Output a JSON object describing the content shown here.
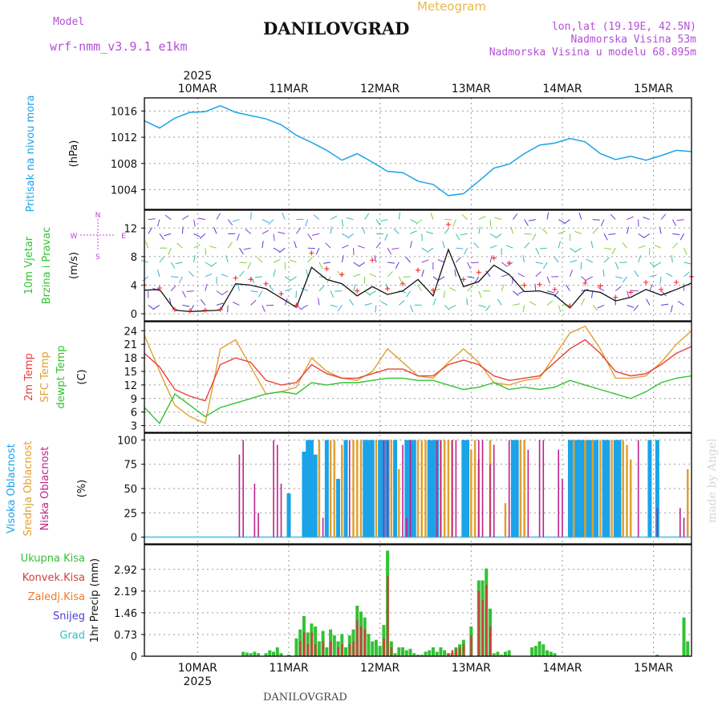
{
  "header": {
    "meteogram_label": "Meteogram",
    "model_label": "Model",
    "model_name": "wrf-nmm_v3.9.1  e1km",
    "station": "DANILOVGRAD",
    "lonlat": "lon,lat (19.19E, 42.5N)",
    "elevation": "Nadmorska Visina 53m",
    "model_elevation": "Nadmorska Visina u modelu 68.895m",
    "watermark": "made by Angel",
    "footer_station": "DANILOVGRAD"
  },
  "colors": {
    "pressure": "#1aa3e8",
    "temp2m": "#e8413c",
    "sfc_temp": "#e0a030",
    "dewpt": "#33c233",
    "wind_speed": "#111111",
    "gust": "#ff3333",
    "high_cloud": "#1aa3e8",
    "mid_cloud": "#e0a030",
    "low_cloud": "#c0208a",
    "total_precip": "#33c233",
    "conv_precip": "#d04040",
    "axis_label_pink": "#c040e0"
  },
  "time_axis": {
    "year": "2025",
    "days": [
      "10MAR",
      "11MAR",
      "12MAR",
      "13MAR",
      "14MAR",
      "15MAR"
    ],
    "hours_total": 144
  },
  "chart_data": [
    {
      "type": "line",
      "panel": "pressure",
      "ylabel_main": "Pritisak na nivou mora",
      "unit": "(hPa)",
      "yticks": [
        1004,
        1008,
        1012,
        1016
      ],
      "ylim": [
        1001,
        1018
      ],
      "grid": true,
      "series": [
        {
          "name": "Pritisak na nivou mora",
          "x": [
            0,
            4,
            8,
            12,
            16,
            20,
            24,
            28,
            32,
            36,
            40,
            44,
            48,
            52,
            56,
            60,
            64,
            68,
            72,
            76,
            80,
            84,
            88,
            92,
            96,
            100,
            104,
            108,
            112,
            116,
            120,
            124,
            128,
            132,
            136,
            140,
            144
          ],
          "values": [
            1014.5,
            1013.4,
            1014.9,
            1015.8,
            1015.9,
            1016.8,
            1015.8,
            1015.3,
            1014.8,
            1013.9,
            1012.3,
            1011.2,
            1010.0,
            1008.5,
            1009.5,
            1008.2,
            1006.8,
            1006.6,
            1005.3,
            1004.8,
            1003.1,
            1003.4,
            1005.3,
            1007.3,
            1007.9,
            1009.5,
            1010.8,
            1011.1,
            1011.8,
            1011.3,
            1009.5,
            1008.6,
            1009.1,
            1008.5,
            1009.2,
            1010.0,
            1009.8
          ]
        }
      ]
    },
    {
      "type": "line",
      "panel": "wind",
      "ylabel_main": "10m Vjetar",
      "ylabel_sub": "Brzina i Pravac",
      "unit": "(m/s)",
      "compass": [
        "N",
        "W",
        "E",
        "S"
      ],
      "yticks": [
        0,
        4,
        8,
        12
      ],
      "ylim": [
        -1,
        14.5
      ],
      "grid": true,
      "series": [
        {
          "name": "10m Vjetar",
          "x": [
            0,
            4,
            8,
            12,
            16,
            20,
            24,
            28,
            32,
            36,
            40,
            44,
            48,
            52,
            56,
            60,
            64,
            68,
            72,
            76,
            80,
            84,
            88,
            92,
            96,
            100,
            104,
            108,
            112,
            116,
            120,
            124,
            128,
            132,
            136,
            140,
            144
          ],
          "values": [
            3.3,
            3.4,
            0.5,
            0.3,
            0.4,
            0.5,
            4.2,
            4.0,
            3.5,
            2.2,
            0.9,
            6.5,
            4.8,
            4.2,
            2.5,
            3.8,
            2.7,
            3.2,
            4.8,
            2.5,
            9.0,
            3.8,
            4.5,
            6.8,
            5.5,
            3.1,
            3.2,
            2.6,
            0.8,
            3.3,
            3.0,
            1.8,
            2.3,
            3.4,
            2.6,
            3.4,
            4.3
          ]
        },
        {
          "name": "gust",
          "x": [
            0,
            4,
            8,
            12,
            16,
            20,
            24,
            28,
            32,
            36,
            40,
            44,
            48,
            52,
            56,
            60,
            64,
            68,
            72,
            76,
            80,
            84,
            88,
            92,
            96,
            100,
            104,
            108,
            112,
            116,
            120,
            124,
            128,
            132,
            136,
            140,
            144
          ],
          "values": [
            4.0,
            3.6,
            0.6,
            0.4,
            0.5,
            0.6,
            5.0,
            4.8,
            4.2,
            2.8,
            1.2,
            8.5,
            6.3,
            5.5,
            3.2,
            7.5,
            3.5,
            4.2,
            6.1,
            3.3,
            12.5,
            4.8,
            5.8,
            7.8,
            7.1,
            4.0,
            4.1,
            3.4,
            1.1,
            4.3,
            3.9,
            2.3,
            3.0,
            4.4,
            3.4,
            4.4,
            5.2
          ]
        }
      ]
    },
    {
      "type": "line",
      "panel": "temperature",
      "ylabel_lines": [
        "2m Temp",
        "SFC Temp",
        "dewpt Temp"
      ],
      "unit": "(C)",
      "yticks": [
        3,
        6,
        9,
        12,
        15,
        18,
        21,
        24
      ],
      "ylim": [
        1.5,
        26
      ],
      "grid": true,
      "series": [
        {
          "name": "2m Temp",
          "x": [
            0,
            4,
            8,
            12,
            16,
            20,
            24,
            28,
            32,
            36,
            40,
            44,
            48,
            52,
            56,
            60,
            64,
            68,
            72,
            76,
            80,
            84,
            88,
            92,
            96,
            100,
            104,
            108,
            112,
            116,
            120,
            124,
            128,
            132,
            136,
            140,
            144
          ],
          "values": [
            19.0,
            16.0,
            11.0,
            9.5,
            8.5,
            16.5,
            18.0,
            17.0,
            13.0,
            12.0,
            12.5,
            16.5,
            14.5,
            13.5,
            13.5,
            14.5,
            15.5,
            15.5,
            14.0,
            14.0,
            16.5,
            17.5,
            16.5,
            14.0,
            13.0,
            13.5,
            14.0,
            17.0,
            20.0,
            22.0,
            19.0,
            15.0,
            14.0,
            14.5,
            16.5,
            19.0,
            20.5
          ]
        },
        {
          "name": "SFC Temp",
          "x": [
            0,
            4,
            8,
            12,
            16,
            20,
            24,
            28,
            32,
            36,
            40,
            44,
            48,
            52,
            56,
            60,
            64,
            68,
            72,
            76,
            80,
            84,
            88,
            92,
            96,
            100,
            104,
            108,
            112,
            116,
            120,
            124,
            128,
            132,
            136,
            140,
            144
          ],
          "values": [
            23.0,
            15.0,
            7.5,
            5.0,
            3.5,
            20.0,
            22.0,
            16.0,
            10.0,
            10.5,
            11.5,
            18.0,
            15.0,
            13.5,
            13.0,
            15.0,
            20.0,
            17.0,
            14.0,
            13.5,
            17.0,
            20.0,
            17.0,
            12.5,
            12.0,
            13.0,
            13.5,
            18.5,
            23.5,
            25.0,
            20.0,
            13.5,
            13.5,
            14.0,
            17.0,
            21.0,
            24.0
          ]
        },
        {
          "name": "dewpt Temp",
          "x": [
            0,
            4,
            8,
            12,
            16,
            20,
            24,
            28,
            32,
            36,
            40,
            44,
            48,
            52,
            56,
            60,
            64,
            68,
            72,
            76,
            80,
            84,
            88,
            92,
            96,
            100,
            104,
            108,
            112,
            116,
            120,
            124,
            128,
            132,
            136,
            140,
            144
          ],
          "values": [
            7.0,
            3.5,
            10.0,
            7.5,
            5.0,
            7.0,
            8.0,
            9.0,
            10.0,
            10.5,
            10.0,
            12.5,
            12.0,
            12.5,
            12.5,
            13.0,
            13.5,
            13.5,
            13.0,
            13.0,
            12.0,
            11.0,
            11.5,
            12.5,
            11.0,
            11.5,
            11.0,
            11.5,
            13.0,
            12.0,
            11.0,
            10.0,
            9.0,
            10.5,
            12.5,
            13.5,
            14.0
          ]
        }
      ]
    },
    {
      "type": "bar",
      "panel": "cloud",
      "ylabel_lines": [
        "Visoka Oblacnost",
        "Srednja Oblacnost",
        "Niska Oblacnost"
      ],
      "unit": "(%)",
      "yticks": [
        0,
        25,
        50,
        75,
        100
      ],
      "ylim": [
        -7,
        107
      ],
      "grid": true,
      "series": [
        {
          "name": "Visoka Oblacnost",
          "x": [
            38,
            42,
            43,
            44,
            45,
            48,
            51,
            53,
            58,
            59,
            60,
            62,
            63,
            64,
            66,
            69,
            70,
            71,
            75,
            76,
            77,
            84,
            85,
            97,
            98,
            112,
            113,
            114,
            115,
            116,
            117,
            118,
            119,
            121,
            122,
            124,
            125,
            133,
            135
          ],
          "values": [
            45,
            88,
            100,
            100,
            85,
            100,
            60,
            100,
            100,
            100,
            100,
            100,
            100,
            100,
            100,
            100,
            100,
            100,
            100,
            100,
            100,
            100,
            100,
            100,
            100,
            100,
            100,
            100,
            100,
            100,
            100,
            100,
            100,
            100,
            100,
            100,
            100,
            100,
            100
          ]
        },
        {
          "name": "Srednja Oblacnost",
          "x": [
            46,
            49,
            50,
            52,
            55,
            56,
            57,
            61,
            65,
            67,
            72,
            73,
            74,
            78,
            79,
            80,
            81,
            86,
            87,
            88,
            91,
            95,
            99,
            100,
            113,
            116,
            118,
            120,
            123,
            126,
            127,
            128,
            143
          ],
          "values": [
            100,
            100,
            100,
            95,
            100,
            100,
            100,
            100,
            100,
            70,
            100,
            100,
            100,
            100,
            100,
            100,
            100,
            90,
            100,
            80,
            100,
            35,
            100,
            100,
            100,
            100,
            100,
            100,
            100,
            100,
            95,
            80,
            70
          ]
        },
        {
          "name": "Niska Oblacnost",
          "x": [
            25,
            26,
            29,
            30,
            34,
            35,
            36,
            47,
            54,
            63,
            64,
            68,
            69,
            70,
            77,
            78,
            81,
            82,
            88,
            89,
            91,
            92,
            96,
            101,
            104,
            105,
            109,
            110,
            130,
            135,
            141,
            142
          ],
          "values": [
            85,
            100,
            55,
            25,
            100,
            95,
            55,
            20,
            100,
            100,
            100,
            95,
            20,
            100,
            100,
            100,
            100,
            100,
            100,
            100,
            75,
            95,
            100,
            90,
            100,
            100,
            90,
            60,
            100,
            30,
            30,
            20
          ]
        }
      ]
    },
    {
      "type": "bar",
      "panel": "precip",
      "ylabel_lines": [
        "Ukupna Kisa",
        "Konvek.Kisa",
        "Zaledj.Kisa",
        "Snijeg",
        "Grad"
      ],
      "unit": "1hr Precip (mm)",
      "yticks": [
        "0",
        "0.73",
        "1.46",
        "2.19",
        "2.92"
      ],
      "ylim": [
        0,
        3.75
      ],
      "grid": true,
      "series": [
        {
          "name": "Ukupna Kisa",
          "x": [
            26,
            27,
            28,
            29,
            30,
            32,
            33,
            34,
            35,
            36,
            38,
            40,
            41,
            42,
            43,
            44,
            45,
            46,
            47,
            48,
            49,
            50,
            51,
            52,
            53,
            54,
            55,
            56,
            57,
            58,
            59,
            60,
            61,
            62,
            63,
            64,
            65,
            66,
            67,
            68,
            69,
            70,
            71,
            72,
            73,
            74,
            75,
            76,
            77,
            78,
            79,
            80,
            81,
            82,
            83,
            84,
            86,
            88,
            89,
            90,
            91,
            92,
            93,
            94,
            95,
            96,
            102,
            103,
            104,
            105,
            106,
            107,
            108,
            135,
            142,
            143
          ],
          "values": [
            0.15,
            0.12,
            0.1,
            0.15,
            0.1,
            0.1,
            0.2,
            0.15,
            0.3,
            0.1,
            0.05,
            0.6,
            0.9,
            1.35,
            0.8,
            1.1,
            1.0,
            0.5,
            0.85,
            0.3,
            0.9,
            0.7,
            0.5,
            0.75,
            0.3,
            0.7,
            0.9,
            1.7,
            1.5,
            1.3,
            0.75,
            0.5,
            0.55,
            0.35,
            1.05,
            3.55,
            0.5,
            0.1,
            0.3,
            0.3,
            0.2,
            0.25,
            0.1,
            0.05,
            0.05,
            0.15,
            0.2,
            0.3,
            0.15,
            0.3,
            0.2,
            0.1,
            0.1,
            0.3,
            0.4,
            0.55,
            1.0,
            2.55,
            2.55,
            2.95,
            1.6,
            0.1,
            0.15,
            0.05,
            0.15,
            0.2,
            0.3,
            0.35,
            0.5,
            0.4,
            0.2,
            0.15,
            0.1,
            0.05,
            1.3,
            0.5
          ]
        },
        {
          "name": "Konvek.Kisa",
          "x": [
            41,
            42,
            43,
            44,
            45,
            47,
            49,
            51,
            52,
            54,
            55,
            56,
            57,
            58,
            63,
            64,
            65,
            80,
            81,
            82,
            83,
            84,
            86,
            88,
            89,
            90,
            91
          ],
          "values": [
            0.5,
            0.8,
            0.4,
            0.8,
            0.4,
            0.5,
            0.5,
            0.3,
            0.4,
            0.4,
            0.5,
            1.2,
            1.0,
            0.9,
            0.6,
            2.7,
            0.3,
            0.1,
            0.2,
            0.25,
            0.3,
            0.4,
            0.7,
            2.2,
            1.9,
            2.4,
            1.0
          ]
        }
      ]
    }
  ]
}
